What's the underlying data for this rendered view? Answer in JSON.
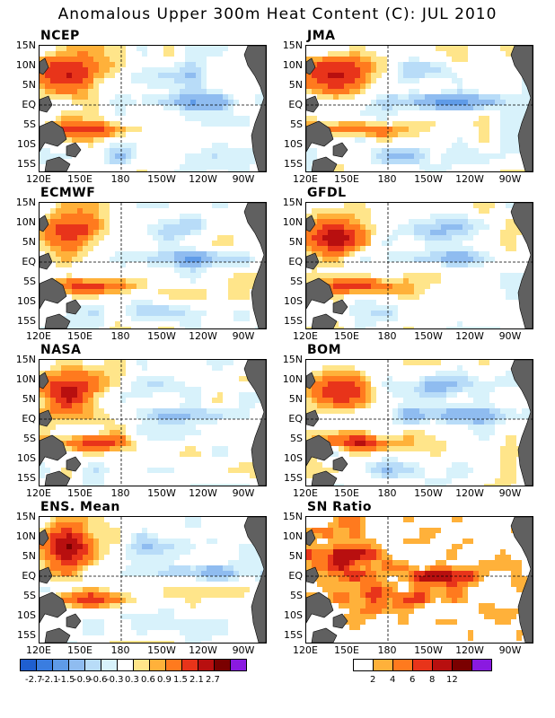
{
  "title": "Anomalous Upper 300m Heat Content (C): JUL 2010",
  "panels": [
    {
      "name": "NCEP"
    },
    {
      "name": "JMA"
    },
    {
      "name": "ECMWF"
    },
    {
      "name": "GFDL"
    },
    {
      "name": "NASA"
    },
    {
      "name": "BOM"
    },
    {
      "name": "ENS. Mean"
    },
    {
      "name": "SN Ratio"
    }
  ],
  "axes": {
    "lat_labels": [
      "15N",
      "10N",
      "5N",
      "EQ",
      "5S",
      "10S",
      "15S"
    ],
    "lon_labels": [
      "120E",
      "150E",
      "180",
      "150W",
      "120W",
      "90W"
    ]
  },
  "colorbar_anom": {
    "labels": [
      "-2.7",
      "-2.1",
      "-1.5",
      "-0.9",
      "-0.6",
      "-0.3",
      "0.3",
      "0.6",
      "0.9",
      "1.5",
      "2.1",
      "2.7"
    ],
    "colors": [
      "#1f5fd0",
      "#3a7de0",
      "#5f9be8",
      "#8fbcf0",
      "#b8dcf8",
      "#d8f2fb",
      "#ffffff",
      "#ffe58a",
      "#ffb13a",
      "#ff7a1e",
      "#e8341a",
      "#b80f0f",
      "#7a0000",
      "#8a1ae0"
    ]
  },
  "colorbar_sn": {
    "labels": [
      "2",
      "4",
      "6",
      "8",
      "12"
    ],
    "colors": [
      "#ffffff",
      "#ffb13a",
      "#ff7a1e",
      "#e8341a",
      "#b80f0f",
      "#7a0000",
      "#8a1ae0"
    ]
  }
}
